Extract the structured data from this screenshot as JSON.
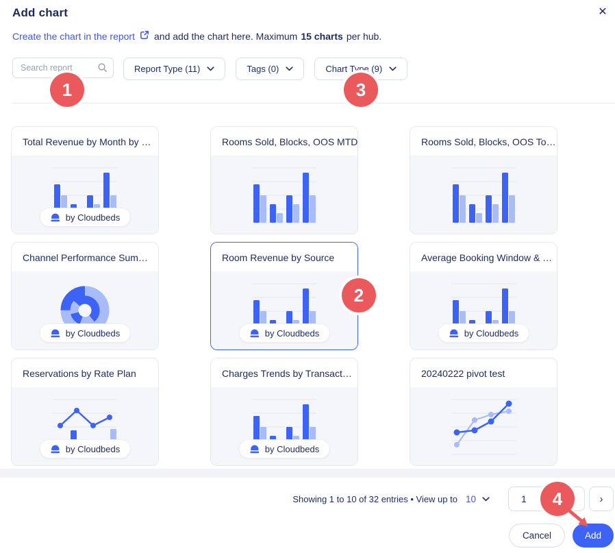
{
  "modal": {
    "title": "Add chart",
    "close_icon": "✕",
    "subtitle": {
      "link_text": "Create the chart in the report",
      "text_after_link": "and add the chart here. Maximum",
      "bold_text": "15 charts",
      "text_end": "per hub."
    },
    "filters": {
      "search_placeholder": "Search report",
      "dropdowns": [
        {
          "label": "Report Type (11)"
        },
        {
          "label": "Tags (0)"
        },
        {
          "label": "Chart Type (9)"
        }
      ]
    },
    "cards": [
      {
        "title": "Total Revenue by Month by …",
        "thumbnail": "bar",
        "badge": "by Cloudbeds",
        "selected": false
      },
      {
        "title": "Rooms Sold, Blocks, OOS MTD",
        "thumbnail": "bar",
        "badge": null,
        "selected": false
      },
      {
        "title": "Rooms Sold, Blocks, OOS To…",
        "thumbnail": "bar",
        "badge": null,
        "selected": false
      },
      {
        "title": "Channel Performance Sum…",
        "thumbnail": "donut",
        "badge": "by Cloudbeds",
        "selected": false
      },
      {
        "title": "Room Revenue by Source",
        "thumbnail": "bar",
        "badge": "by Cloudbeds",
        "selected": true
      },
      {
        "title": "Average Booking Window & …",
        "thumbnail": "bar",
        "badge": "by Cloudbeds",
        "selected": false
      },
      {
        "title": "Reservations by Rate Plan",
        "thumbnail": "combo",
        "badge": "by Cloudbeds",
        "selected": false
      },
      {
        "title": "Charges Trends by Transact…",
        "thumbnail": "bar",
        "badge": "by Cloudbeds",
        "selected": false
      },
      {
        "title": "20240222 pivot test",
        "thumbnail": "line",
        "badge": null,
        "selected": false
      }
    ],
    "pagination": {
      "summary": "Showing 1 to 10 of 32 entries • View up to",
      "page_size": "10",
      "current_page": "1",
      "prev_icon": "‹",
      "next_icon": "›"
    },
    "footer": {
      "cancel_label": "Cancel",
      "add_label": "Add"
    },
    "annotations": [
      {
        "number": "1"
      },
      {
        "number": "2"
      },
      {
        "number": "3"
      },
      {
        "number": "4"
      }
    ],
    "colors": {
      "primary_blue": "#3D63F6",
      "light_blue": "#A7BCF9",
      "navy_text": "#1C2B5E",
      "annotation_red": "#EA5A5C"
    }
  }
}
